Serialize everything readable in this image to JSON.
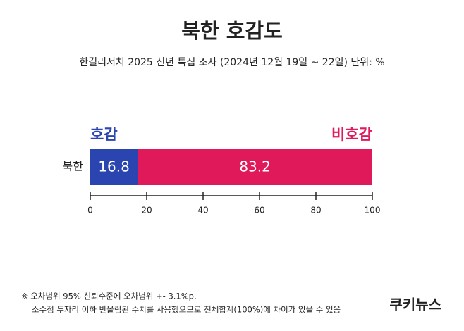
{
  "chart_data": {
    "type": "stacked_bar_horizontal",
    "title": "북한 호감도",
    "subtitle": "한길리서치 2025 신년 특집 조사 (2024년 12월 19일 ~ 22일) 단위: %",
    "categories": [
      "북한"
    ],
    "series": [
      {
        "name": "호감",
        "color": "#2a45b0",
        "values": [
          16.8
        ]
      },
      {
        "name": "비호감",
        "color": "#e0195a",
        "values": [
          83.2
        ]
      }
    ],
    "xlim": [
      0,
      100
    ],
    "xticks": [
      0,
      20,
      40,
      60,
      80,
      100
    ],
    "notes": [
      "※ 오차범위 95% 신뢰수준에 오차범위 +- 3.1%p.",
      "소수점 두자리 이하 반올림된 수치를 사용했으므로 전체합계(100%)에 차이가 있을 수 있음"
    ],
    "source": "쿠키뉴스"
  }
}
